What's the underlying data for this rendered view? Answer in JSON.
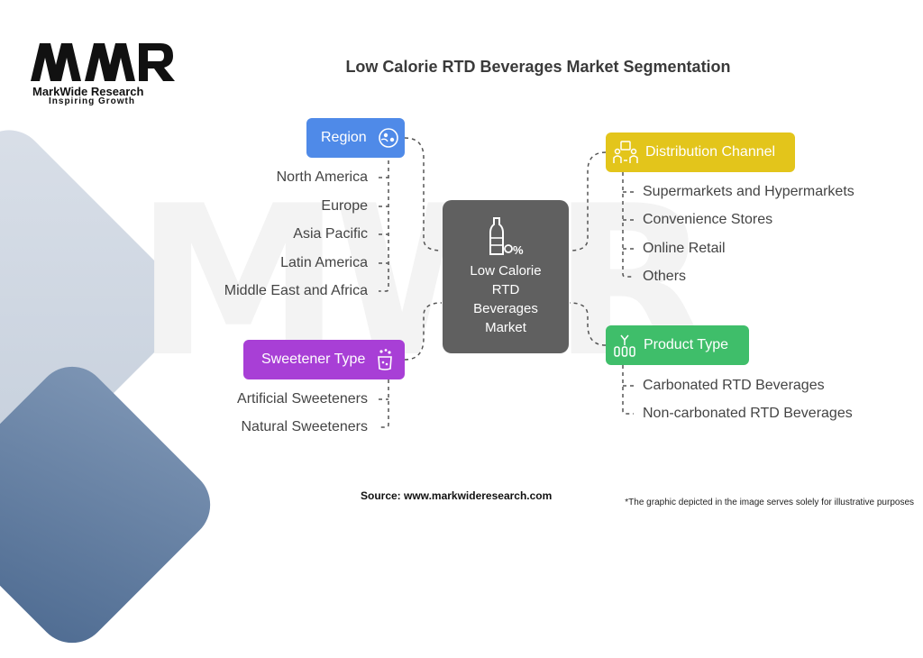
{
  "brand": {
    "name": "MarkWide Research",
    "tagline": "Inspiring Growth",
    "watermark": "MWR"
  },
  "title": "Low Calorie RTD Beverages Market Segmentation",
  "center": {
    "label": "Low Calorie RTD Beverages Market",
    "icon": "bottle-percent-icon"
  },
  "segments": {
    "region": {
      "label": "Region",
      "icon": "globe-icon",
      "color": "#4f8ae8",
      "items": [
        "North America",
        "Europe",
        "Asia Pacific",
        "Latin America",
        "Middle East and Africa"
      ]
    },
    "sweetener": {
      "label": "Sweetener Type",
      "icon": "sweetener-jar-icon",
      "color": "#a83fd6",
      "items": [
        "Artificial Sweeteners",
        "Natural Sweeteners"
      ]
    },
    "distribution": {
      "label": "Distribution Channel",
      "icon": "store-people-icon",
      "color": "#e3c51b",
      "items": [
        "Supermarkets and Hypermarkets",
        "Convenience Stores",
        "Online Retail",
        "Others"
      ]
    },
    "product": {
      "label": "Product Type",
      "icon": "product-bottles-icon",
      "color": "#3fbe6a",
      "items": [
        "Carbonated RTD Beverages",
        "Non-carbonated RTD Beverages"
      ]
    }
  },
  "footer": {
    "source": "Source: www.markwideresearch.com",
    "note": "*The graphic depicted in the image serves solely for illustrative purposes"
  }
}
